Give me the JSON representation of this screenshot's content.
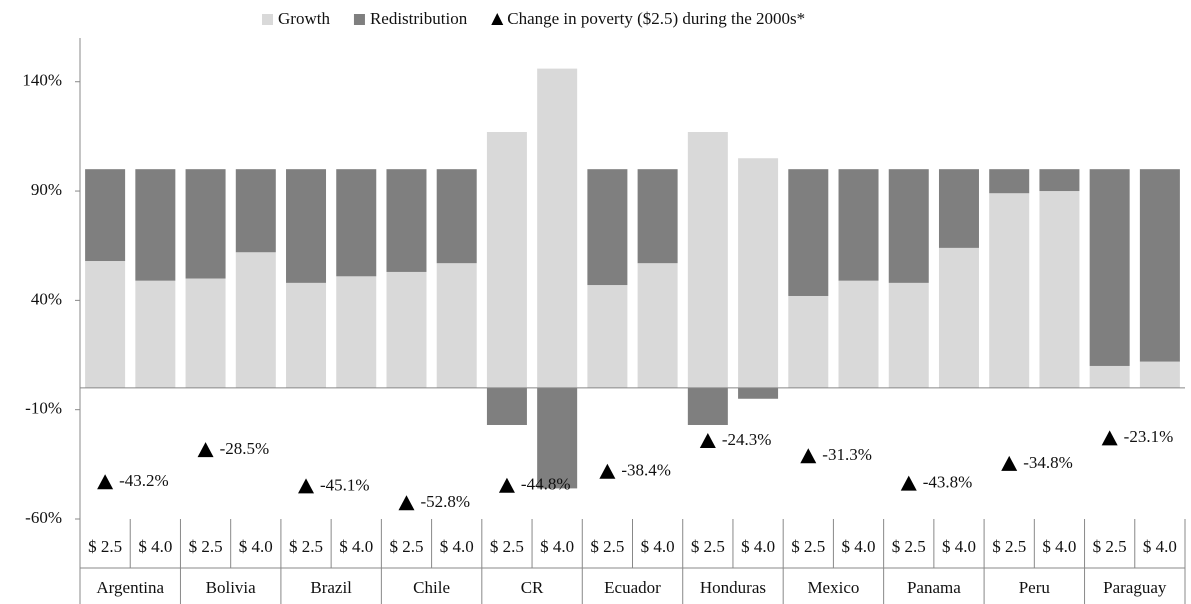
{
  "chart_data": {
    "type": "stacked-bar",
    "categories": [
      "$ 2.5",
      "$ 4.0",
      "$ 2.5",
      "$ 4.0",
      "$ 2.5",
      "$ 4.0",
      "$ 2.5",
      "$ 4.0",
      "$ 2.5",
      "$ 4.0",
      "$ 2.5",
      "$ 4.0",
      "$ 2.5",
      "$ 4.0",
      "$ 2.5",
      "$ 4.0",
      "$ 2.5",
      "$ 4.0",
      "$ 2.5",
      "$ 4.0",
      "$ 2.5",
      "$ 4.0"
    ],
    "groups": [
      "Argentina",
      "Bolivia",
      "Brazil",
      "Chile",
      "CR",
      "Ecuador",
      "Honduras",
      "Mexico",
      "Panama",
      "Peru",
      "Paraguay"
    ],
    "series": [
      {
        "name": "Growth",
        "color": "#d9d9d9",
        "values": [
          58,
          49,
          50,
          62,
          48,
          51,
          53,
          57,
          117,
          146,
          47,
          57,
          117,
          105,
          42,
          49,
          48,
          64,
          89,
          90,
          10,
          12
        ]
      },
      {
        "name": "Redistribution",
        "color": "#7f7f7f",
        "values": [
          42,
          51,
          50,
          38,
          52,
          49,
          47,
          43,
          -17,
          -46,
          53,
          43,
          -17,
          -5,
          58,
          51,
          52,
          36,
          11,
          10,
          90,
          88
        ]
      }
    ],
    "markers": {
      "name": "Change in poverty ($2.5) during the 2000s*",
      "color": "#000000",
      "values": [
        -43.2,
        -28.5,
        -45.1,
        -52.8,
        -44.8,
        -38.4,
        -24.3,
        -31.3,
        -43.8,
        -34.8,
        -23.1
      ],
      "value_labels": [
        "-43.2%",
        "-28.5%",
        "-45.1%",
        "-52.8%",
        "-44.8%",
        "-38.4%",
        "-24.3%",
        "-31.3%",
        "-43.8%",
        "-34.8%",
        "-23.1%"
      ]
    },
    "ylim": [
      -60,
      160
    ],
    "yticks": [
      {
        "value": -60,
        "label": "-60%"
      },
      {
        "value": -10,
        "label": "-10%"
      },
      {
        "value": 40,
        "label": "40%"
      },
      {
        "value": 90,
        "label": "90%"
      },
      {
        "value": 140,
        "label": "140%"
      }
    ]
  }
}
